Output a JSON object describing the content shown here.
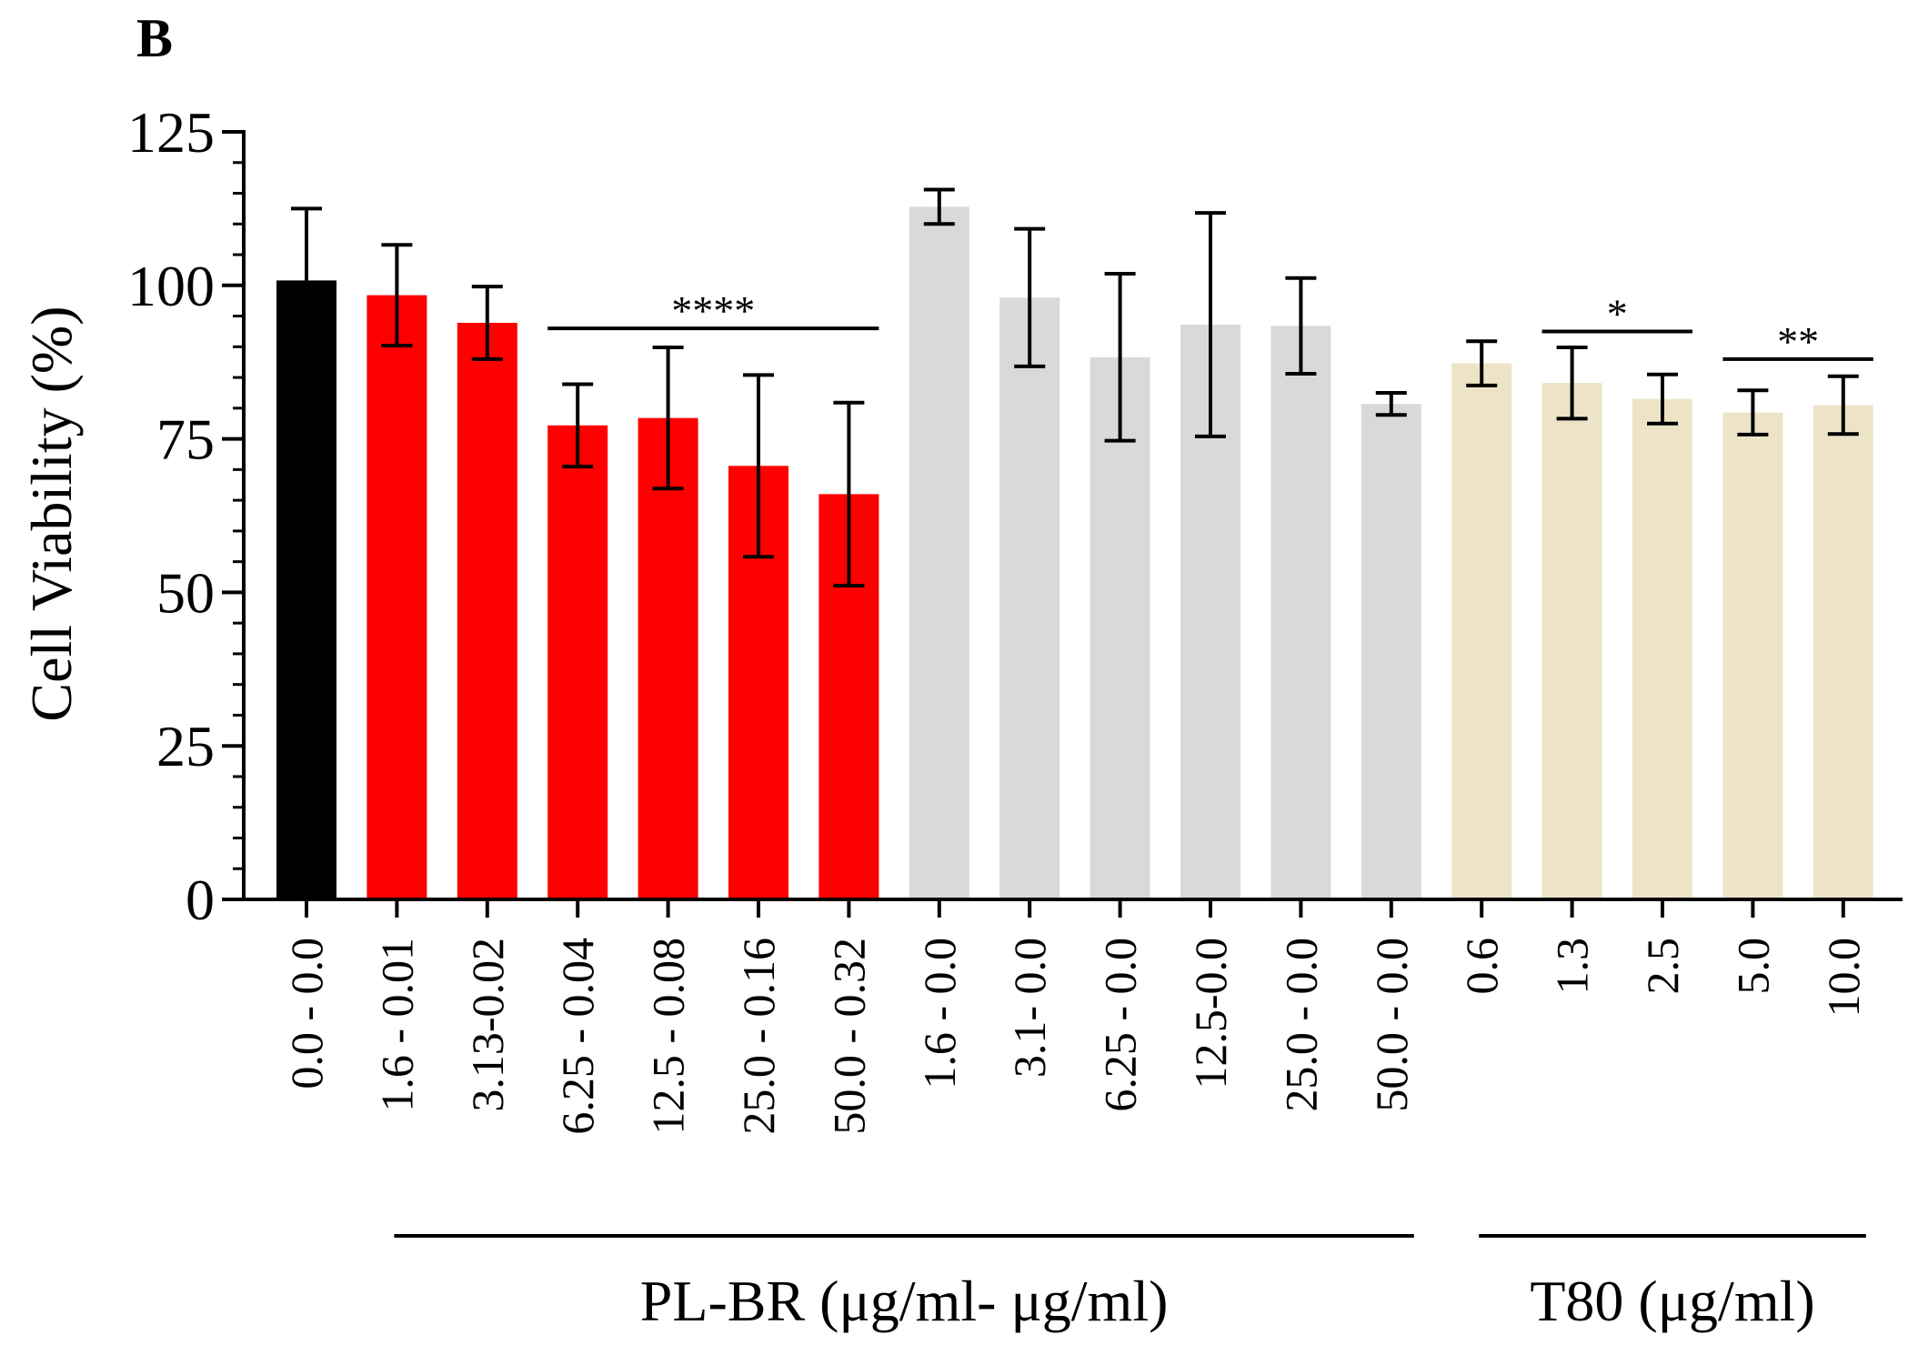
{
  "panel_label": "B",
  "chart_data": {
    "type": "bar",
    "ylabel": "Cell Viability (%)",
    "xlabel": "",
    "ylim": [
      0,
      125
    ],
    "yticks": [
      0,
      25,
      50,
      75,
      100,
      125
    ],
    "categories": [
      "0.0 - 0.0",
      "1.6 - 0.01",
      "3.13-0.02",
      "6.25 - 0.04",
      "12.5 - 0.08",
      "25.0 - 0.16",
      "50.0 - 0.32",
      "1.6 - 0.0",
      "3.1- 0.0",
      "6.25 - 0.0",
      "12.5-0.0",
      "25.0 - 0.0",
      "50.0 - 0.0",
      "0.6",
      "1.3",
      "2.5",
      "5.0",
      "10.0"
    ],
    "values": [
      100.8,
      98.4,
      93.9,
      77.2,
      78.4,
      70.6,
      66.0,
      112.8,
      98.0,
      88.3,
      93.6,
      93.4,
      80.7,
      87.3,
      84.1,
      81.5,
      79.3,
      80.5
    ],
    "errors": [
      11.7,
      8.2,
      5.9,
      6.7,
      11.5,
      14.8,
      14.9,
      2.8,
      11.2,
      13.6,
      18.2,
      7.8,
      1.8,
      3.6,
      5.8,
      4.0,
      3.6,
      4.7
    ],
    "colors": [
      "#000000",
      "#ff0000",
      "#ff0000",
      "#ff0000",
      "#ff0000",
      "#ff0000",
      "#ff0000",
      "#d9d9d9",
      "#d9d9d9",
      "#d9d9d9",
      "#d9d9d9",
      "#d9d9d9",
      "#d9d9d9",
      "#ede4c8",
      "#ede4c8",
      "#ede4c8",
      "#ede4c8",
      "#ede4c8"
    ],
    "significance": [
      {
        "label": "****",
        "from": 3,
        "to": 6,
        "y": 93
      },
      {
        "label": "*",
        "from": 14,
        "to": 15,
        "y": 92.5
      },
      {
        "label": "**",
        "from": 16,
        "to": 17,
        "y": 88
      }
    ],
    "groups": [
      {
        "label": "PL-BR (μg/ml- μg/ml)",
        "from": 1,
        "to": 12
      },
      {
        "label": "T80 (μg/ml)",
        "from": 13,
        "to": 17
      }
    ]
  }
}
